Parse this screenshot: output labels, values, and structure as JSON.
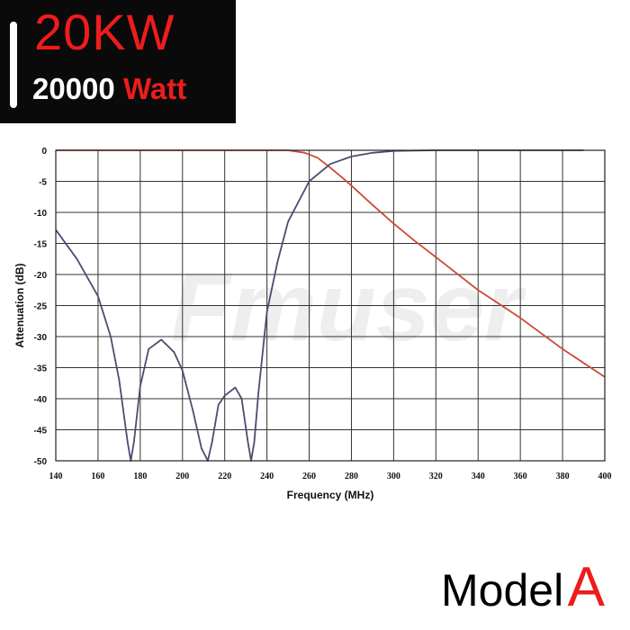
{
  "badge": {
    "power": "20KW",
    "watt_number": "20000",
    "watt_unit": "Watt"
  },
  "watermark": "Fmuser",
  "model": {
    "word": "Model",
    "letter": "A"
  },
  "colors": {
    "accent_red": "#ee1c1c",
    "badge_bg": "#0a0a0a",
    "series_lowpass": "#cc4a33",
    "series_bandpass": "#4c4c72",
    "grid": "#333333",
    "watermark": "#eeeeee"
  },
  "chart_data": {
    "type": "line",
    "xlabel": "Frequency (MHz)",
    "ylabel": "Attenuation (dB)",
    "xlim": [
      140,
      400
    ],
    "ylim": [
      -50,
      0
    ],
    "xticks": [
      140,
      160,
      180,
      200,
      220,
      240,
      260,
      280,
      300,
      320,
      340,
      360,
      380,
      400
    ],
    "yticks": [
      0,
      -5,
      -10,
      -15,
      -20,
      -25,
      -30,
      -35,
      -40,
      -45,
      -50
    ],
    "yticklabels": [
      "0",
      "-5",
      "-10",
      "-15",
      "-20",
      "-25",
      "-30",
      "-35",
      "-40",
      "-45",
      "-50"
    ],
    "grid": true,
    "series": [
      {
        "color": "#cc4a33",
        "x": [
          140,
          200,
          240,
          250,
          258,
          264,
          270,
          276,
          280,
          290,
          300,
          310,
          320,
          340,
          360,
          380,
          400
        ],
        "y": [
          0,
          0,
          0,
          0,
          -0.4,
          -1.2,
          -2.8,
          -4.5,
          -5.7,
          -8.8,
          -11.8,
          -14.6,
          -17.2,
          -22.5,
          -27,
          -32,
          -36.5
        ]
      },
      {
        "color": "#4c4c72",
        "x": [
          140,
          150,
          160,
          166,
          170,
          174,
          175.5,
          177,
          180,
          184,
          190,
          196,
          200,
          205,
          209,
          212,
          214,
          217,
          220,
          225,
          228,
          231,
          232.5,
          234,
          236,
          240,
          245,
          250,
          260,
          270,
          280,
          290,
          300,
          320,
          340,
          390
        ],
        "y": [
          -12.8,
          -17.5,
          -23.5,
          -30,
          -37,
          -47,
          -50,
          -47,
          -38,
          -32,
          -30.5,
          -32.5,
          -35.5,
          -42,
          -48,
          -50,
          -47,
          -41,
          -39.5,
          -38.2,
          -40,
          -47,
          -50,
          -47,
          -39,
          -26,
          -18,
          -11.5,
          -5,
          -2.2,
          -1,
          -0.4,
          -0.1,
          0,
          0,
          0
        ]
      }
    ]
  }
}
